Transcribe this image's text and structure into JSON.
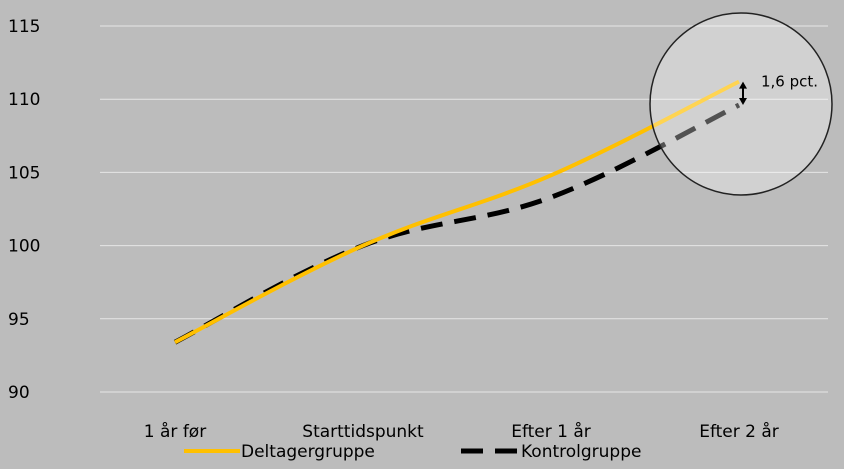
{
  "chart_data": {
    "type": "line",
    "title": "",
    "xlabel": "",
    "ylabel": "",
    "categories": [
      "1 år før",
      "Starttidspunkt",
      "Efter 1 år",
      "Efter 2 år"
    ],
    "ylim": [
      90,
      115
    ],
    "yticks": [
      90,
      95,
      100,
      105,
      110,
      115
    ],
    "grid": true,
    "legend_position": "bottom",
    "series": [
      {
        "name": "Deltagergruppe",
        "values": [
          93.4,
          100.0,
          104.8,
          111.2
        ],
        "color": "#ffc000",
        "style": "solid"
      },
      {
        "name": "Kontrolgruppe",
        "values": [
          93.4,
          100.0,
          103.3,
          109.6
        ],
        "color": "#000000",
        "style": "dashed"
      }
    ],
    "annotation": {
      "text": "1,6 pct.",
      "category_index": 3
    }
  }
}
